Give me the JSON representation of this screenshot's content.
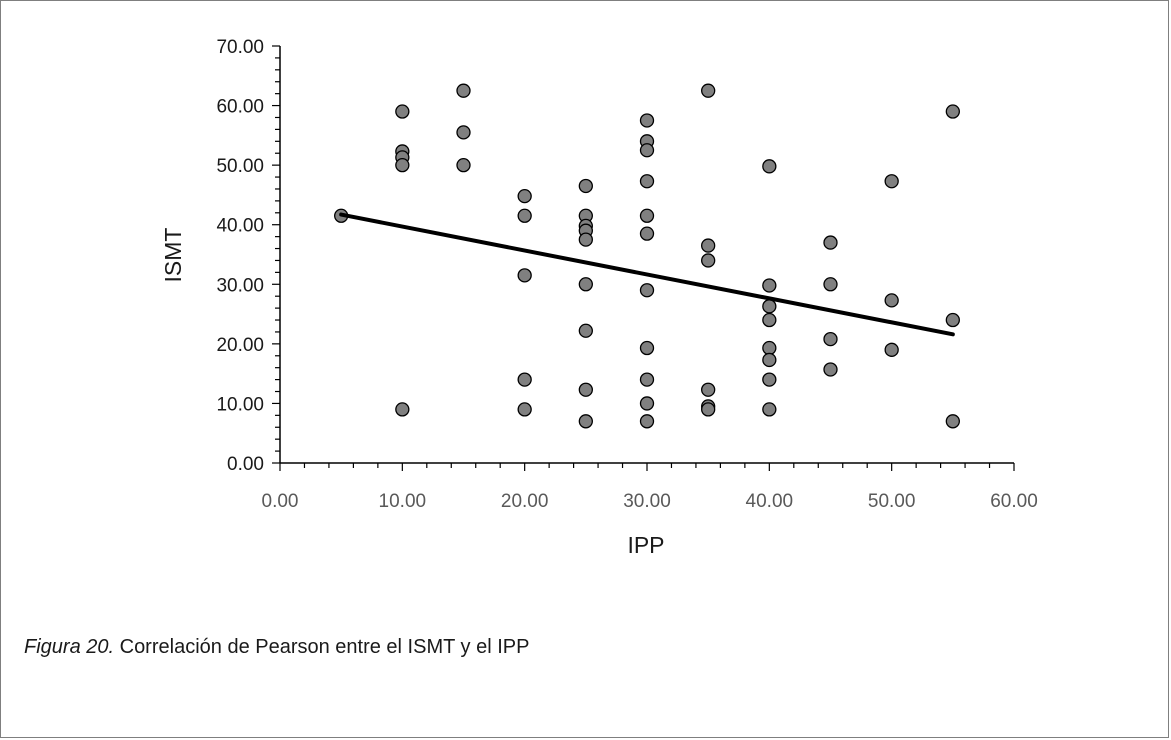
{
  "chart_data": {
    "type": "scatter",
    "title": "",
    "xlabel": "IPP",
    "ylabel": "ISMT",
    "xlim": [
      0,
      60
    ],
    "ylim": [
      0,
      70
    ],
    "x_ticks": [
      "0.00",
      "10.00",
      "20.00",
      "30.00",
      "40.00",
      "50.00",
      "60.00"
    ],
    "y_ticks": [
      "0.00",
      "10.00",
      "20.00",
      "30.00",
      "40.00",
      "50.00",
      "60.00",
      "70.00"
    ],
    "grid": false,
    "legend": "none",
    "points": [
      [
        5,
        41.5
      ],
      [
        10,
        59
      ],
      [
        10,
        52.3
      ],
      [
        10,
        51.3
      ],
      [
        10,
        50
      ],
      [
        10,
        9
      ],
      [
        15,
        62.5
      ],
      [
        15,
        55.5
      ],
      [
        15,
        50
      ],
      [
        20,
        44.8
      ],
      [
        20,
        41.5
      ],
      [
        20,
        31.5
      ],
      [
        20,
        14
      ],
      [
        20,
        9
      ],
      [
        25,
        46.5
      ],
      [
        25,
        41.5
      ],
      [
        25,
        39.8
      ],
      [
        25,
        39
      ],
      [
        25,
        37.5
      ],
      [
        25,
        30
      ],
      [
        25,
        22.2
      ],
      [
        25,
        12.3
      ],
      [
        25,
        7
      ],
      [
        30,
        57.5
      ],
      [
        30,
        54
      ],
      [
        30,
        52.5
      ],
      [
        30,
        47.3
      ],
      [
        30,
        41.5
      ],
      [
        30,
        38.5
      ],
      [
        30,
        29
      ],
      [
        30,
        19.3
      ],
      [
        30,
        14
      ],
      [
        30,
        10
      ],
      [
        30,
        7
      ],
      [
        35,
        62.5
      ],
      [
        35,
        36.5
      ],
      [
        35,
        34
      ],
      [
        35,
        12.3
      ],
      [
        35,
        9.5
      ],
      [
        35,
        9
      ],
      [
        40,
        49.8
      ],
      [
        40,
        29.8
      ],
      [
        40,
        26.3
      ],
      [
        40,
        24
      ],
      [
        40,
        19.3
      ],
      [
        40,
        17.3
      ],
      [
        40,
        14
      ],
      [
        40,
        9
      ],
      [
        45,
        37
      ],
      [
        45,
        30
      ],
      [
        45,
        20.8
      ],
      [
        45,
        15.7
      ],
      [
        50,
        47.3
      ],
      [
        50,
        27.3
      ],
      [
        50,
        19
      ],
      [
        55,
        59
      ],
      [
        55,
        24
      ],
      [
        55,
        7
      ]
    ],
    "trendline": {
      "x": [
        5,
        55
      ],
      "y": [
        41.7,
        21.6
      ]
    },
    "colors": {
      "marker_fill": "#808080",
      "marker_stroke": "#000000",
      "trendline": "#000000",
      "axis": "#000000",
      "tick_label": "#595959",
      "axis_title": "#1a1a1a"
    }
  },
  "caption": {
    "figure_label": "Figura 20.",
    "text": " Correlación de Pearson entre el ISMT y el IPP"
  }
}
